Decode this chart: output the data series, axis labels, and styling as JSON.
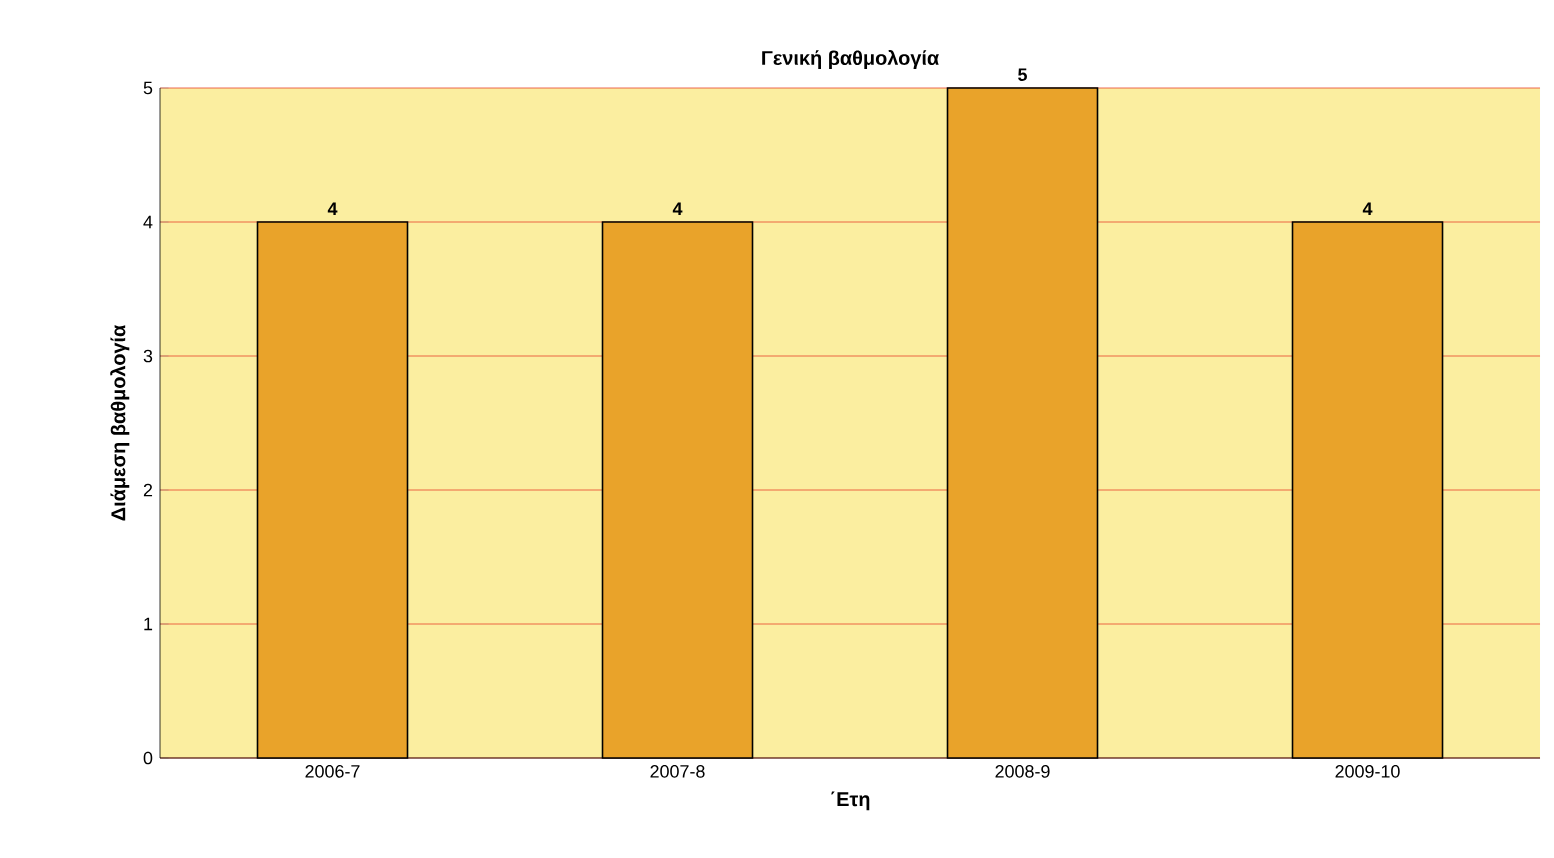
{
  "chart_data": {
    "type": "bar",
    "title": "Γενική βαθμολογία",
    "xlabel": "΄Ετη",
    "ylabel": "Διάμεση βαθμολογία",
    "categories": [
      "2006-7",
      "2007-8",
      "2008-9",
      "2009-10"
    ],
    "values": [
      4,
      4,
      5,
      4
    ],
    "color": "#e9a32a",
    "ylim": [
      0,
      5
    ],
    "yticks": [
      0,
      1,
      2,
      3,
      4,
      5
    ],
    "grid": "y",
    "data_labels": true
  }
}
